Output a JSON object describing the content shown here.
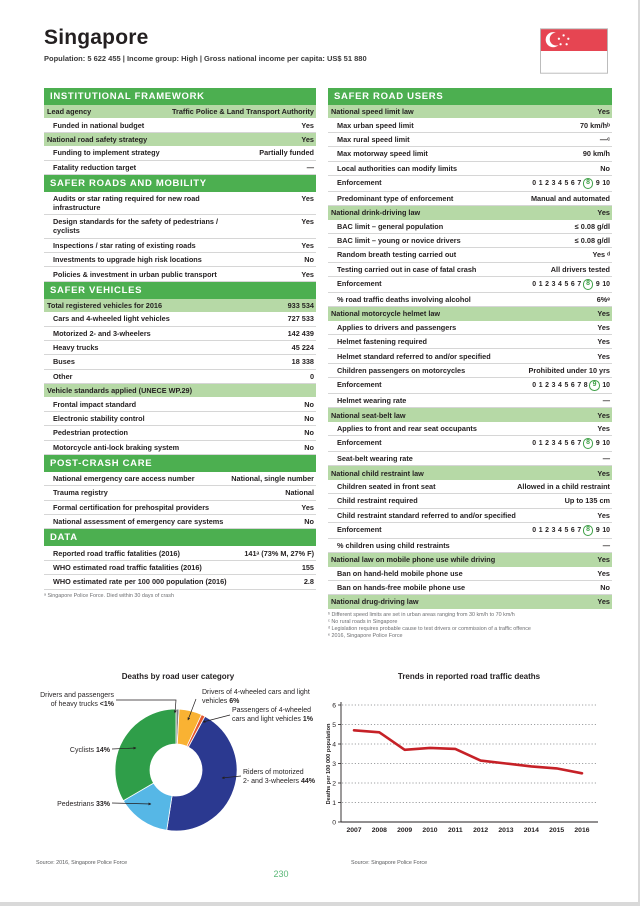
{
  "header": {
    "title": "Singapore",
    "subtitle": "Population: 5 622 455 | Income group: High | Gross national income per capita: US$ 51 880"
  },
  "colors": {
    "header_green": "#4caf50",
    "row_highlight_green": "#b6d9a6",
    "enforcement_circle_green": "#3fa047",
    "page_number_green": "#5bb878",
    "flag_red": "#e64552"
  },
  "left_sections": [
    {
      "title": "INSTITUTIONAL FRAMEWORK",
      "rows": [
        {
          "label": "Lead agency",
          "value": "Traffic Police & Land Transport Authority",
          "highlight": true
        },
        {
          "label": "Funded in national budget",
          "value": "Yes"
        },
        {
          "label": "National road safety strategy",
          "value": "Yes",
          "highlight": true
        },
        {
          "label": "Funding to implement strategy",
          "value": "Partially funded"
        },
        {
          "label": "Fatality reduction target",
          "value": "—"
        }
      ]
    },
    {
      "title": "SAFER ROADS AND MOBILITY",
      "rows": [
        {
          "label": "Audits or star rating required for new road infrastructure",
          "value": "Yes"
        },
        {
          "label": "Design standards for the safety of pedestrians / cyclists",
          "value": "Yes"
        },
        {
          "label": "Inspections / star rating of existing roads",
          "value": "Yes"
        },
        {
          "label": "Investments to upgrade high risk locations",
          "value": "No"
        },
        {
          "label": "Policies & investment in urban public transport",
          "value": "Yes"
        }
      ]
    },
    {
      "title": "SAFER VEHICLES",
      "rows": [
        {
          "label": "Total registered vehicles for 2016",
          "value": "933 534",
          "highlight": true
        },
        {
          "label": "Cars and 4-wheeled light vehicles",
          "value": "727 533"
        },
        {
          "label": "Motorized 2- and 3-wheelers",
          "value": "142 439"
        },
        {
          "label": "Heavy trucks",
          "value": "45 224"
        },
        {
          "label": "Buses",
          "value": "18 338"
        },
        {
          "label": "Other",
          "value": "0"
        },
        {
          "label": "Vehicle standards applied (UNECE WP.29)",
          "value": "",
          "highlight": true
        },
        {
          "label": "Frontal impact standard",
          "value": "No"
        },
        {
          "label": "Electronic stability control",
          "value": "No"
        },
        {
          "label": "Pedestrian protection",
          "value": "No"
        },
        {
          "label": "Motorcycle anti-lock braking system",
          "value": "No"
        }
      ]
    },
    {
      "title": "POST-CRASH CARE",
      "rows": [
        {
          "label": "National emergency care access number",
          "value": "National, single number"
        },
        {
          "label": "Trauma registry",
          "value": "National"
        },
        {
          "label": "Formal certification for prehospital providers",
          "value": "Yes"
        },
        {
          "label": "National assessment of emergency care systems",
          "value": "No"
        }
      ]
    },
    {
      "title": "DATA",
      "rows": [
        {
          "label": "Reported road traffic fatalities (2016)",
          "value": "141ᵃ (73% M, 27% F)"
        },
        {
          "label": "WHO estimated road traffic fatalities (2016)",
          "value": "155"
        },
        {
          "label": "WHO estimated rate per 100 000 population (2016)",
          "value": "2.8"
        }
      ],
      "footnotes": [
        "ᵃ Singapore Police Force. Died within 30 days of crash"
      ]
    }
  ],
  "right_sections": [
    {
      "title": "SAFER ROAD USERS",
      "rows": [
        {
          "label": "National speed limit law",
          "value": "Yes",
          "highlight": true
        },
        {
          "label": "Max urban speed limit",
          "value": "70 km/hᵇ"
        },
        {
          "label": "Max rural speed limit",
          "value": "—ᶜ"
        },
        {
          "label": "Max motorway speed limit",
          "value": "90 km/h"
        },
        {
          "label": "Local authorities can modify limits",
          "value": "No"
        },
        {
          "label": "Enforcement",
          "enforcement": 8
        },
        {
          "label": "Predominant type of enforcement",
          "value": "Manual and automated"
        },
        {
          "label": "National drink-driving law",
          "value": "Yes",
          "highlight": true
        },
        {
          "label": "BAC limit – general population",
          "value": "≤ 0.08 g/dl"
        },
        {
          "label": "BAC limit – young or novice drivers",
          "value": "≤ 0.08 g/dl"
        },
        {
          "label": "Random breath testing carried out",
          "value": "Yes ᵈ"
        },
        {
          "label": "Testing carried out in case of fatal crash",
          "value": "All drivers tested"
        },
        {
          "label": "Enforcement",
          "enforcement": 8
        },
        {
          "label": "% road traffic deaths involving alcohol",
          "value": "6%ᵉ"
        },
        {
          "label": "National motorcycle helmet law",
          "value": "Yes",
          "highlight": true
        },
        {
          "label": "Applies to drivers and passengers",
          "value": "Yes"
        },
        {
          "label": "Helmet fastening required",
          "value": "Yes"
        },
        {
          "label": "Helmet standard referred to and/or specified",
          "value": "Yes"
        },
        {
          "label": "Children passengers on motorcycles",
          "value": "Prohibited under 10 yrs"
        },
        {
          "label": "Enforcement",
          "enforcement": 9
        },
        {
          "label": "Helmet wearing rate",
          "value": "—"
        },
        {
          "label": "National seat-belt law",
          "value": "Yes",
          "highlight": true
        },
        {
          "label": "Applies to front and rear seat occupants",
          "value": "Yes"
        },
        {
          "label": "Enforcement",
          "enforcement": 8
        },
        {
          "label": "Seat-belt wearing rate",
          "value": "—"
        },
        {
          "label": "National child restraint law",
          "value": "Yes",
          "highlight": true
        },
        {
          "label": "Children seated in front seat",
          "value": "Allowed in a child restraint"
        },
        {
          "label": "Child restraint required",
          "value": "Up to 135 cm"
        },
        {
          "label": "Child restraint standard referred to and/or specified",
          "value": "Yes"
        },
        {
          "label": "Enforcement",
          "enforcement": 8
        },
        {
          "label": "% children using child restraints",
          "value": "—"
        },
        {
          "label": "National law on mobile phone use while driving",
          "value": "Yes",
          "highlight": true
        },
        {
          "label": "Ban on hand-held mobile phone use",
          "value": "Yes"
        },
        {
          "label": "Ban on hands-free mobile phone use",
          "value": "No"
        },
        {
          "label": "National drug-driving law",
          "value": "Yes",
          "highlight": true
        }
      ],
      "footnotes": [
        "ᵇ Different speed limits are set in urban areas ranging from 30 km/h to 70 km/h",
        "ᶜ No rural roads in Singapore",
        "ᵈ Legislation requires probable cause to test drivers or commission of a traffic offence",
        "ᵉ 2016, Singapore Police Force"
      ]
    }
  ],
  "chart_data": [
    {
      "type": "pie",
      "donut": true,
      "title": "Deaths by road user category",
      "slices": [
        {
          "label": "Drivers and passengers of heavy trucks",
          "pct": "<1%",
          "value": 0.8,
          "color": "#808184"
        },
        {
          "label": "Drivers of 4-wheeled cars and light vehicles",
          "pct": "6%",
          "value": 6,
          "color": "#f9b233"
        },
        {
          "label": "Passengers of 4-wheeled cars and light vehicles",
          "pct": "1%",
          "value": 1,
          "color": "#e4572e"
        },
        {
          "label": "Riders of motorized 2- and 3-wheelers",
          "pct": "44%",
          "value": 44,
          "color": "#2b3990"
        },
        {
          "label": "Cyclists",
          "pct": "14%",
          "value": 14,
          "color": "#56b7e6"
        },
        {
          "label": "Pedestrians",
          "pct": "33%",
          "value": 33,
          "color": "#2f9e49"
        }
      ],
      "source": "Source: 2016, Singapore Police Force"
    },
    {
      "type": "line",
      "title": "Trends in reported road traffic deaths",
      "ylabel": "Deaths per 100 000 population",
      "x": [
        2007,
        2008,
        2009,
        2010,
        2011,
        2012,
        2013,
        2014,
        2015,
        2016
      ],
      "y": [
        4.7,
        4.6,
        3.7,
        3.8,
        3.75,
        3.15,
        3.0,
        2.85,
        2.75,
        2.5
      ],
      "ylim": [
        0,
        6
      ],
      "yticks": [
        0,
        1,
        2,
        3,
        4,
        5,
        6
      ],
      "grid": "dotted",
      "line_color": "#c62127",
      "source": "Source: Singapore Police Force"
    }
  ],
  "footer": {
    "page_number": "230"
  }
}
